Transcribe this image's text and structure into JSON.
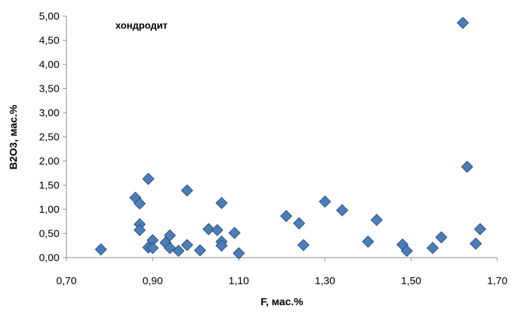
{
  "chart_data": {
    "type": "scatter",
    "annotation": "хондродит",
    "xlabel": "F, мас.%",
    "ylabel": "B2O3, мас.%",
    "xlim": [
      0.7,
      1.7
    ],
    "ylim": [
      0.0,
      5.0
    ],
    "x_ticks": [
      "0,70",
      "0,90",
      "1,10",
      "1,30",
      "1,50",
      "1,70"
    ],
    "y_ticks": [
      "0,00",
      "0,50",
      "1,00",
      "1,50",
      "2,00",
      "2,50",
      "3,00",
      "3,50",
      "4,00",
      "4,50",
      "5,00"
    ],
    "grid": false,
    "legend": false,
    "marker": "diamond",
    "marker_color": "#4a7ebb",
    "series": [
      {
        "points": [
          [
            0.78,
            0.17
          ],
          [
            0.86,
            1.24
          ],
          [
            0.87,
            1.12
          ],
          [
            0.87,
            0.69
          ],
          [
            0.87,
            0.57
          ],
          [
            0.89,
            1.63
          ],
          [
            0.89,
            0.21
          ],
          [
            0.9,
            0.36
          ],
          [
            0.9,
            0.2
          ],
          [
            0.93,
            0.31
          ],
          [
            0.94,
            0.46
          ],
          [
            0.94,
            0.2
          ],
          [
            0.96,
            0.14
          ],
          [
            0.98,
            1.39
          ],
          [
            0.98,
            0.26
          ],
          [
            1.01,
            0.15
          ],
          [
            1.03,
            0.59
          ],
          [
            1.05,
            0.57
          ],
          [
            1.06,
            1.13
          ],
          [
            1.06,
            0.33
          ],
          [
            1.06,
            0.25
          ],
          [
            1.09,
            0.51
          ],
          [
            1.1,
            0.09
          ],
          [
            1.21,
            0.86
          ],
          [
            1.24,
            0.71
          ],
          [
            1.25,
            0.26
          ],
          [
            1.3,
            1.16
          ],
          [
            1.34,
            0.98
          ],
          [
            1.4,
            0.33
          ],
          [
            1.42,
            0.78
          ],
          [
            1.48,
            0.27
          ],
          [
            1.49,
            0.14
          ],
          [
            1.55,
            0.2
          ],
          [
            1.57,
            0.42
          ],
          [
            1.62,
            4.86
          ],
          [
            1.63,
            1.88
          ],
          [
            1.65,
            0.29
          ],
          [
            1.66,
            0.59
          ]
        ]
      }
    ]
  }
}
